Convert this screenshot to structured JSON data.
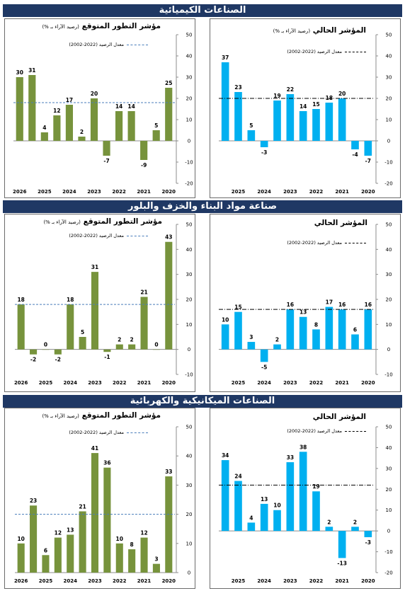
{
  "sections": [
    {
      "title": "الصناعات الكيميائية"
    },
    {
      "title": "صناعة مواد البناء والخزف والبلور"
    },
    {
      "title": "الصناعات الميكانيكية والكهربائية"
    }
  ],
  "chart_data": [
    {
      "type": "bar",
      "title": "مؤشر التطور المتوقع",
      "subtitle": "(رصيد الآراء بـ %)",
      "legend": "معدل الرصيد (2022-2002)",
      "color": "#77933c",
      "reference_line": 18,
      "x_labels": [
        "2020",
        "2021",
        "2022",
        "2023",
        "2024",
        "2025",
        "2026"
      ],
      "values": [
        25,
        5,
        -9,
        14,
        14,
        -7,
        20,
        2,
        17,
        12,
        4,
        31,
        30
      ],
      "ylim": [
        -20,
        50
      ],
      "yticks": [
        -20,
        -10,
        0,
        10,
        20,
        30,
        40,
        50
      ]
    },
    {
      "type": "bar",
      "title": "المؤشر الحالي",
      "subtitle": "(رصيد الآراء بـ %)",
      "legend": "معدل الرصيد (2022-2002)",
      "color": "#00b0f0",
      "reference_line": 20,
      "x_labels": [
        "2020",
        "2021",
        "2022",
        "2023",
        "2024",
        "2025"
      ],
      "values": [
        -7,
        -4,
        20,
        18,
        15,
        14,
        22,
        19,
        -3,
        5,
        23,
        37
      ],
      "ylim": [
        -20,
        50
      ],
      "yticks": [
        -20,
        -10,
        0,
        10,
        20,
        30,
        40,
        50
      ]
    },
    {
      "type": "bar",
      "title": "مؤشر التطور المتوقع",
      "subtitle": "(رصيد الآراء بـ %)",
      "legend": "معدل الرصيد (2022-2002)",
      "color": "#77933c",
      "reference_line": 18,
      "x_labels": [
        "2020",
        "2021",
        "2022",
        "2023",
        "2024",
        "2025",
        "2026"
      ],
      "values": [
        43,
        0,
        21,
        2,
        2,
        -1,
        31,
        5,
        18,
        -2,
        0,
        -2,
        18
      ],
      "ylim": [
        -10,
        50
      ],
      "yticks": [
        -10,
        0,
        10,
        20,
        30,
        40,
        50
      ]
    },
    {
      "type": "bar",
      "title": "المؤشر الحالي",
      "legend": "معدل الرصيد (2022-2002)",
      "color": "#00b0f0",
      "reference_line": 16,
      "x_labels": [
        "2020",
        "2021",
        "2022",
        "2023",
        "2024",
        "2025"
      ],
      "values": [
        16,
        6,
        16,
        17,
        8,
        13,
        16,
        2,
        -5,
        3,
        15,
        10
      ],
      "ylim": [
        -10,
        50
      ],
      "yticks": [
        -10,
        0,
        10,
        20,
        30,
        40,
        50
      ]
    },
    {
      "type": "bar",
      "title": "مؤشر التطور المتوقع",
      "subtitle": "(رصيد الآراء بـ %)",
      "legend": "معدل الرصيد (2022-2002)",
      "color": "#77933c",
      "reference_line": 20,
      "x_labels": [
        "2020",
        "2021",
        "2022",
        "2023",
        "2024",
        "2025",
        "2026"
      ],
      "values": [
        33,
        3,
        12,
        8,
        10,
        36,
        41,
        21,
        13,
        12,
        6,
        23,
        10
      ],
      "ylim": [
        0,
        50
      ],
      "yticks": [
        0,
        10,
        20,
        30,
        40,
        50
      ]
    },
    {
      "type": "bar",
      "title": "المؤشر الحالي",
      "legend": "معدل الرصيد (2022-2002)",
      "color": "#00b0f0",
      "reference_line": 22,
      "x_labels": [
        "2020",
        "2021",
        "2022",
        "2023",
        "2024",
        "2025"
      ],
      "values": [
        -3,
        2,
        -13,
        2,
        19,
        38,
        33,
        10,
        13,
        4,
        24,
        34
      ],
      "ylim": [
        -20,
        50
      ],
      "yticks": [
        -20,
        -10,
        0,
        10,
        20,
        30,
        40,
        50
      ]
    }
  ]
}
